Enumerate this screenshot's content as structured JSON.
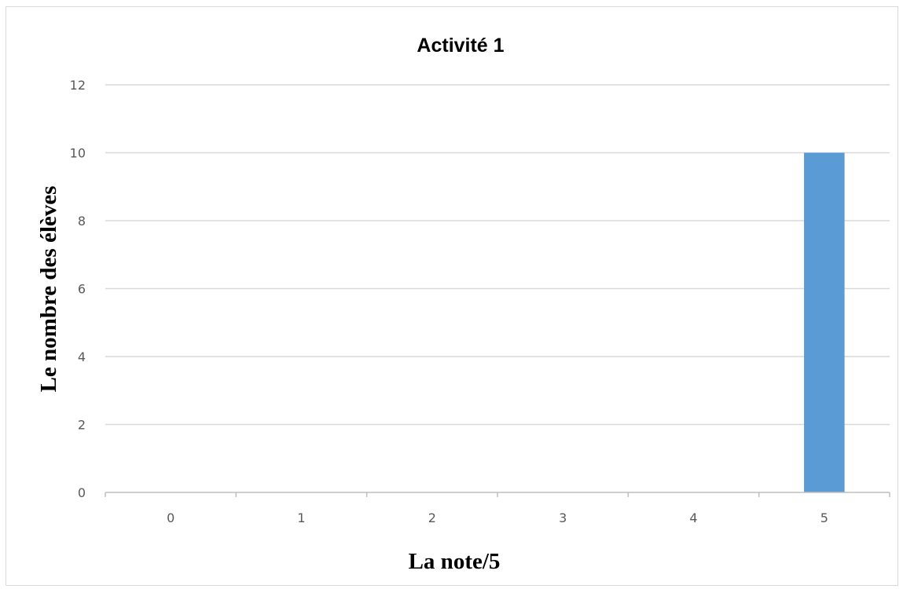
{
  "chart_data": {
    "type": "bar",
    "title": "Activité 1",
    "xlabel": "La note/5",
    "ylabel": "Le nombre des élèves",
    "categories": [
      "0",
      "1",
      "2",
      "3",
      "4",
      "5"
    ],
    "values": [
      0,
      0,
      0,
      0,
      0,
      10
    ],
    "ylim": [
      0,
      12
    ],
    "yticks": [
      0,
      2,
      4,
      6,
      8,
      10,
      12
    ],
    "grid": true,
    "legend": "none",
    "bar_color": "#5b9bd5"
  }
}
